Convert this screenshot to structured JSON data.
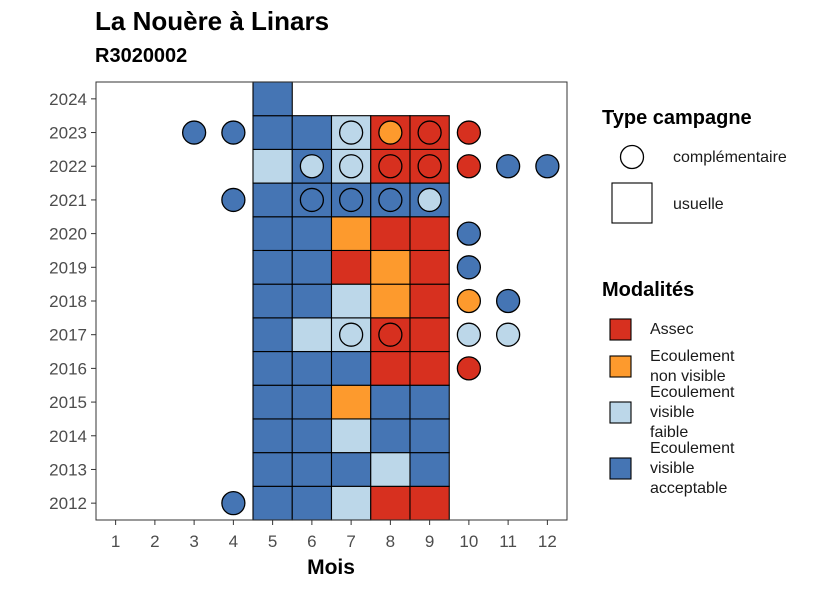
{
  "title": "La Nouère à Linars",
  "subtitle": "R3020002",
  "colors": {
    "assec": "#D7301F",
    "ecoulement_non_visible": "#FD9A2D",
    "ecoulement_visible_faible": "#BCD7E9",
    "ecoulement_visible_acceptable": "#4575B4"
  },
  "chart_data": {
    "type": "heatmap",
    "xlabel": "Mois",
    "ylabel": "",
    "x_ticks": [
      "1",
      "2",
      "3",
      "4",
      "5",
      "6",
      "7",
      "8",
      "9",
      "10",
      "11",
      "12"
    ],
    "y_ticks": [
      "2012",
      "2013",
      "2014",
      "2015",
      "2016",
      "2017",
      "2018",
      "2019",
      "2020",
      "2021",
      "2022",
      "2023",
      "2024"
    ],
    "xlim": [
      0.5,
      12.5
    ],
    "ylim": [
      2011.5,
      2024.5
    ],
    "legend_type": {
      "title": "Type campagne",
      "entries": [
        {
          "label": "complémentaire",
          "shape": "circle"
        },
        {
          "label": "usuelle",
          "shape": "square"
        }
      ]
    },
    "legend_modalites": {
      "title": "Modalités",
      "entries": [
        {
          "key": "assec",
          "lines": [
            "Assec"
          ]
        },
        {
          "key": "ecoulement_non_visible",
          "lines": [
            "Ecoulement",
            "non visible"
          ]
        },
        {
          "key": "ecoulement_visible_faible",
          "lines": [
            "Ecoulement",
            "visible",
            "faible"
          ]
        },
        {
          "key": "ecoulement_visible_acceptable",
          "lines": [
            "Ecoulement",
            "visible",
            "acceptable"
          ]
        }
      ]
    },
    "usuelle": [
      {
        "year": 2012,
        "month": 5,
        "value": "ecoulement_visible_acceptable"
      },
      {
        "year": 2012,
        "month": 6,
        "value": "ecoulement_visible_acceptable"
      },
      {
        "year": 2012,
        "month": 7,
        "value": "ecoulement_visible_faible"
      },
      {
        "year": 2012,
        "month": 8,
        "value": "assec"
      },
      {
        "year": 2012,
        "month": 9,
        "value": "assec"
      },
      {
        "year": 2013,
        "month": 5,
        "value": "ecoulement_visible_acceptable"
      },
      {
        "year": 2013,
        "month": 6,
        "value": "ecoulement_visible_acceptable"
      },
      {
        "year": 2013,
        "month": 7,
        "value": "ecoulement_visible_acceptable"
      },
      {
        "year": 2013,
        "month": 8,
        "value": "ecoulement_visible_faible"
      },
      {
        "year": 2013,
        "month": 9,
        "value": "ecoulement_visible_acceptable"
      },
      {
        "year": 2014,
        "month": 5,
        "value": "ecoulement_visible_acceptable"
      },
      {
        "year": 2014,
        "month": 6,
        "value": "ecoulement_visible_acceptable"
      },
      {
        "year": 2014,
        "month": 7,
        "value": "ecoulement_visible_faible"
      },
      {
        "year": 2014,
        "month": 8,
        "value": "ecoulement_visible_acceptable"
      },
      {
        "year": 2014,
        "month": 9,
        "value": "ecoulement_visible_acceptable"
      },
      {
        "year": 2015,
        "month": 5,
        "value": "ecoulement_visible_acceptable"
      },
      {
        "year": 2015,
        "month": 6,
        "value": "ecoulement_visible_acceptable"
      },
      {
        "year": 2015,
        "month": 7,
        "value": "ecoulement_non_visible"
      },
      {
        "year": 2015,
        "month": 8,
        "value": "ecoulement_visible_acceptable"
      },
      {
        "year": 2015,
        "month": 9,
        "value": "ecoulement_visible_acceptable"
      },
      {
        "year": 2016,
        "month": 5,
        "value": "ecoulement_visible_acceptable"
      },
      {
        "year": 2016,
        "month": 6,
        "value": "ecoulement_visible_acceptable"
      },
      {
        "year": 2016,
        "month": 7,
        "value": "ecoulement_visible_acceptable"
      },
      {
        "year": 2016,
        "month": 8,
        "value": "assec"
      },
      {
        "year": 2016,
        "month": 9,
        "value": "assec"
      },
      {
        "year": 2017,
        "month": 5,
        "value": "ecoulement_visible_acceptable"
      },
      {
        "year": 2017,
        "month": 6,
        "value": "ecoulement_visible_faible"
      },
      {
        "year": 2017,
        "month": 7,
        "value": "ecoulement_visible_faible"
      },
      {
        "year": 2017,
        "month": 8,
        "value": "assec"
      },
      {
        "year": 2017,
        "month": 9,
        "value": "assec"
      },
      {
        "year": 2018,
        "month": 5,
        "value": "ecoulement_visible_acceptable"
      },
      {
        "year": 2018,
        "month": 6,
        "value": "ecoulement_visible_acceptable"
      },
      {
        "year": 2018,
        "month": 7,
        "value": "ecoulement_visible_faible"
      },
      {
        "year": 2018,
        "month": 8,
        "value": "ecoulement_non_visible"
      },
      {
        "year": 2018,
        "month": 9,
        "value": "assec"
      },
      {
        "year": 2019,
        "month": 5,
        "value": "ecoulement_visible_acceptable"
      },
      {
        "year": 2019,
        "month": 6,
        "value": "ecoulement_visible_acceptable"
      },
      {
        "year": 2019,
        "month": 7,
        "value": "assec"
      },
      {
        "year": 2019,
        "month": 8,
        "value": "ecoulement_non_visible"
      },
      {
        "year": 2019,
        "month": 9,
        "value": "assec"
      },
      {
        "year": 2020,
        "month": 5,
        "value": "ecoulement_visible_acceptable"
      },
      {
        "year": 2020,
        "month": 6,
        "value": "ecoulement_visible_acceptable"
      },
      {
        "year": 2020,
        "month": 7,
        "value": "ecoulement_non_visible"
      },
      {
        "year": 2020,
        "month": 8,
        "value": "assec"
      },
      {
        "year": 2020,
        "month": 9,
        "value": "assec"
      },
      {
        "year": 2021,
        "month": 5,
        "value": "ecoulement_visible_acceptable"
      },
      {
        "year": 2021,
        "month": 6,
        "value": "ecoulement_visible_acceptable"
      },
      {
        "year": 2021,
        "month": 7,
        "value": "ecoulement_visible_acceptable"
      },
      {
        "year": 2021,
        "month": 8,
        "value": "ecoulement_visible_acceptable"
      },
      {
        "year": 2021,
        "month": 9,
        "value": "ecoulement_visible_acceptable"
      },
      {
        "year": 2022,
        "month": 5,
        "value": "ecoulement_visible_faible"
      },
      {
        "year": 2022,
        "month": 6,
        "value": "ecoulement_visible_acceptable"
      },
      {
        "year": 2022,
        "month": 7,
        "value": "ecoulement_visible_faible"
      },
      {
        "year": 2022,
        "month": 8,
        "value": "assec"
      },
      {
        "year": 2022,
        "month": 9,
        "value": "assec"
      },
      {
        "year": 2023,
        "month": 5,
        "value": "ecoulement_visible_acceptable"
      },
      {
        "year": 2023,
        "month": 6,
        "value": "ecoulement_visible_acceptable"
      },
      {
        "year": 2023,
        "month": 7,
        "value": "ecoulement_visible_faible"
      },
      {
        "year": 2023,
        "month": 8,
        "value": "assec"
      },
      {
        "year": 2023,
        "month": 9,
        "value": "assec"
      },
      {
        "year": 2024,
        "month": 5,
        "value": "ecoulement_visible_acceptable"
      }
    ],
    "complementaire": [
      {
        "year": 2012,
        "month": 4,
        "value": "ecoulement_visible_acceptable"
      },
      {
        "year": 2016,
        "month": 10,
        "value": "assec"
      },
      {
        "year": 2017,
        "month": 7,
        "value": "ecoulement_visible_faible"
      },
      {
        "year": 2017,
        "month": 8,
        "value": "assec"
      },
      {
        "year": 2017,
        "month": 10,
        "value": "ecoulement_visible_faible"
      },
      {
        "year": 2017,
        "month": 11,
        "value": "ecoulement_visible_faible"
      },
      {
        "year": 2018,
        "month": 10,
        "value": "ecoulement_non_visible"
      },
      {
        "year": 2018,
        "month": 11,
        "value": "ecoulement_visible_acceptable"
      },
      {
        "year": 2019,
        "month": 10,
        "value": "ecoulement_visible_acceptable"
      },
      {
        "year": 2020,
        "month": 10,
        "value": "ecoulement_visible_acceptable"
      },
      {
        "year": 2021,
        "month": 4,
        "value": "ecoulement_visible_acceptable"
      },
      {
        "year": 2021,
        "month": 6,
        "value": "ecoulement_visible_acceptable"
      },
      {
        "year": 2021,
        "month": 7,
        "value": "ecoulement_visible_acceptable"
      },
      {
        "year": 2021,
        "month": 8,
        "value": "ecoulement_visible_acceptable"
      },
      {
        "year": 2021,
        "month": 9,
        "value": "ecoulement_visible_faible"
      },
      {
        "year": 2022,
        "month": 6,
        "value": "ecoulement_visible_faible"
      },
      {
        "year": 2022,
        "month": 7,
        "value": "ecoulement_visible_faible"
      },
      {
        "year": 2022,
        "month": 8,
        "value": "assec"
      },
      {
        "year": 2022,
        "month": 9,
        "value": "assec"
      },
      {
        "year": 2022,
        "month": 10,
        "value": "assec"
      },
      {
        "year": 2022,
        "month": 11,
        "value": "ecoulement_visible_acceptable"
      },
      {
        "year": 2022,
        "month": 12,
        "value": "ecoulement_visible_acceptable"
      },
      {
        "year": 2023,
        "month": 3,
        "value": "ecoulement_visible_acceptable"
      },
      {
        "year": 2023,
        "month": 4,
        "value": "ecoulement_visible_acceptable"
      },
      {
        "year": 2023,
        "month": 7,
        "value": "ecoulement_visible_faible"
      },
      {
        "year": 2023,
        "month": 8,
        "value": "ecoulement_non_visible"
      },
      {
        "year": 2023,
        "month": 9,
        "value": "assec"
      },
      {
        "year": 2023,
        "month": 10,
        "value": "assec"
      }
    ]
  }
}
